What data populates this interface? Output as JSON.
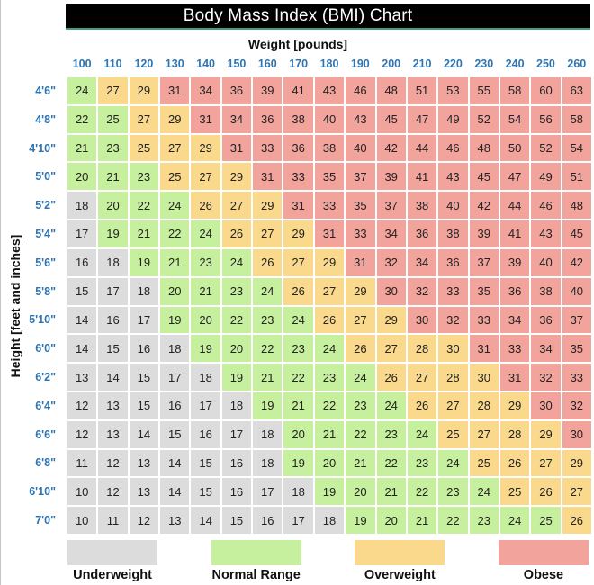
{
  "styles": {
    "header_blue": "#2e74b2",
    "title_bg": "#000000",
    "title_fg": "#ffffff",
    "title_underline": "#3f9f7f",
    "cell_text": "#222222",
    "label_text": "#111111",
    "background": "#ffffff"
  },
  "chart_data": {
    "type": "heatmap",
    "title": "Body Mass Index (BMI) Chart",
    "x_label": "Weight [pounds]",
    "y_label": "Height [feet and inches]",
    "weights_lb": [
      100,
      110,
      120,
      130,
      140,
      150,
      160,
      170,
      180,
      190,
      200,
      210,
      220,
      230,
      240,
      250,
      260
    ],
    "heights": [
      "4'6\"",
      "4'8\"",
      "4'10\"",
      "5'0\"",
      "5'2\"",
      "5'4\"",
      "5'6\"",
      "5'8\"",
      "5'10\"",
      "6'0\"",
      "6'2\"",
      "6'4\"",
      "6'6\"",
      "6'8\"",
      "6'10\"",
      "7'0\""
    ],
    "bmi_values": [
      [
        24,
        27,
        29,
        31,
        34,
        36,
        39,
        41,
        43,
        46,
        48,
        51,
        53,
        55,
        58,
        60,
        63
      ],
      [
        22,
        25,
        27,
        29,
        31,
        34,
        36,
        38,
        40,
        43,
        45,
        47,
        49,
        52,
        54,
        56,
        58
      ],
      [
        21,
        23,
        25,
        27,
        29,
        31,
        33,
        36,
        38,
        40,
        42,
        44,
        46,
        48,
        50,
        52,
        54
      ],
      [
        20,
        21,
        23,
        25,
        27,
        29,
        31,
        33,
        35,
        37,
        39,
        41,
        43,
        45,
        47,
        49,
        51
      ],
      [
        18,
        20,
        22,
        24,
        26,
        27,
        29,
        31,
        33,
        35,
        37,
        38,
        40,
        42,
        44,
        46,
        48
      ],
      [
        17,
        19,
        21,
        22,
        24,
        26,
        27,
        29,
        31,
        33,
        34,
        36,
        38,
        39,
        41,
        43,
        45
      ],
      [
        16,
        18,
        19,
        21,
        23,
        24,
        26,
        27,
        29,
        31,
        32,
        34,
        36,
        37,
        39,
        40,
        42
      ],
      [
        15,
        17,
        18,
        20,
        21,
        23,
        24,
        26,
        27,
        29,
        30,
        32,
        33,
        35,
        36,
        38,
        40
      ],
      [
        14,
        16,
        17,
        19,
        20,
        22,
        23,
        24,
        26,
        27,
        29,
        30,
        32,
        33,
        34,
        36,
        37
      ],
      [
        14,
        15,
        16,
        18,
        19,
        20,
        22,
        23,
        24,
        26,
        27,
        28,
        30,
        31,
        33,
        34,
        35
      ],
      [
        13,
        14,
        15,
        17,
        18,
        19,
        21,
        22,
        23,
        24,
        26,
        27,
        28,
        30,
        31,
        32,
        33
      ],
      [
        12,
        13,
        15,
        16,
        17,
        18,
        19,
        21,
        22,
        23,
        24,
        26,
        27,
        28,
        29,
        30,
        32
      ],
      [
        12,
        13,
        14,
        15,
        16,
        17,
        18,
        20,
        21,
        22,
        23,
        24,
        25,
        27,
        28,
        29,
        30
      ],
      [
        11,
        12,
        13,
        14,
        15,
        16,
        18,
        19,
        20,
        21,
        22,
        23,
        24,
        25,
        26,
        27,
        29
      ],
      [
        10,
        12,
        13,
        14,
        15,
        16,
        17,
        18,
        19,
        20,
        21,
        22,
        23,
        24,
        25,
        26,
        27
      ],
      [
        10,
        11,
        12,
        13,
        14,
        15,
        16,
        17,
        18,
        19,
        20,
        21,
        22,
        23,
        24,
        25,
        26
      ]
    ],
    "categories": [
      [
        "n",
        "o",
        "o",
        "b",
        "b",
        "b",
        "b",
        "b",
        "b",
        "b",
        "b",
        "b",
        "b",
        "b",
        "b",
        "b",
        "b"
      ],
      [
        "n",
        "n",
        "o",
        "o",
        "b",
        "b",
        "b",
        "b",
        "b",
        "b",
        "b",
        "b",
        "b",
        "b",
        "b",
        "b",
        "b"
      ],
      [
        "n",
        "n",
        "o",
        "o",
        "o",
        "b",
        "b",
        "b",
        "b",
        "b",
        "b",
        "b",
        "b",
        "b",
        "b",
        "b",
        "b"
      ],
      [
        "n",
        "n",
        "n",
        "o",
        "o",
        "o",
        "b",
        "b",
        "b",
        "b",
        "b",
        "b",
        "b",
        "b",
        "b",
        "b",
        "b"
      ],
      [
        "u",
        "n",
        "n",
        "n",
        "o",
        "o",
        "o",
        "b",
        "b",
        "b",
        "b",
        "b",
        "b",
        "b",
        "b",
        "b",
        "b"
      ],
      [
        "u",
        "n",
        "n",
        "n",
        "n",
        "o",
        "o",
        "o",
        "b",
        "b",
        "b",
        "b",
        "b",
        "b",
        "b",
        "b",
        "b"
      ],
      [
        "u",
        "u",
        "n",
        "n",
        "n",
        "n",
        "o",
        "o",
        "o",
        "b",
        "b",
        "b",
        "b",
        "b",
        "b",
        "b",
        "b"
      ],
      [
        "u",
        "u",
        "u",
        "n",
        "n",
        "n",
        "n",
        "o",
        "o",
        "o",
        "b",
        "b",
        "b",
        "b",
        "b",
        "b",
        "b"
      ],
      [
        "u",
        "u",
        "u",
        "n",
        "n",
        "n",
        "n",
        "n",
        "o",
        "o",
        "o",
        "b",
        "b",
        "b",
        "b",
        "b",
        "b"
      ],
      [
        "u",
        "u",
        "u",
        "u",
        "n",
        "n",
        "n",
        "n",
        "n",
        "o",
        "o",
        "o",
        "o",
        "b",
        "b",
        "b",
        "b"
      ],
      [
        "u",
        "u",
        "u",
        "u",
        "u",
        "n",
        "n",
        "n",
        "n",
        "n",
        "o",
        "o",
        "o",
        "o",
        "b",
        "b",
        "b"
      ],
      [
        "u",
        "u",
        "u",
        "u",
        "u",
        "u",
        "n",
        "n",
        "n",
        "n",
        "n",
        "o",
        "o",
        "o",
        "o",
        "b",
        "b"
      ],
      [
        "u",
        "u",
        "u",
        "u",
        "u",
        "u",
        "u",
        "n",
        "n",
        "n",
        "n",
        "n",
        "o",
        "o",
        "o",
        "o",
        "b"
      ],
      [
        "u",
        "u",
        "u",
        "u",
        "u",
        "u",
        "u",
        "n",
        "n",
        "n",
        "n",
        "n",
        "n",
        "o",
        "o",
        "o",
        "o"
      ],
      [
        "u",
        "u",
        "u",
        "u",
        "u",
        "u",
        "u",
        "u",
        "n",
        "n",
        "n",
        "n",
        "n",
        "n",
        "o",
        "o",
        "o"
      ],
      [
        "u",
        "u",
        "u",
        "u",
        "u",
        "u",
        "u",
        "u",
        "u",
        "n",
        "n",
        "n",
        "n",
        "n",
        "n",
        "n",
        "o"
      ]
    ],
    "category_colors": {
      "u": "#dcdcdc",
      "n": "#c7f09e",
      "o": "#fad98d",
      "b": "#f2a49c"
    },
    "legend": [
      {
        "key": "u",
        "label": "Underweight"
      },
      {
        "key": "n",
        "label": "Normal Range"
      },
      {
        "key": "o",
        "label": "Overweight"
      },
      {
        "key": "b",
        "label": "Obese"
      }
    ],
    "legend_position": "bottom",
    "grid": false
  }
}
